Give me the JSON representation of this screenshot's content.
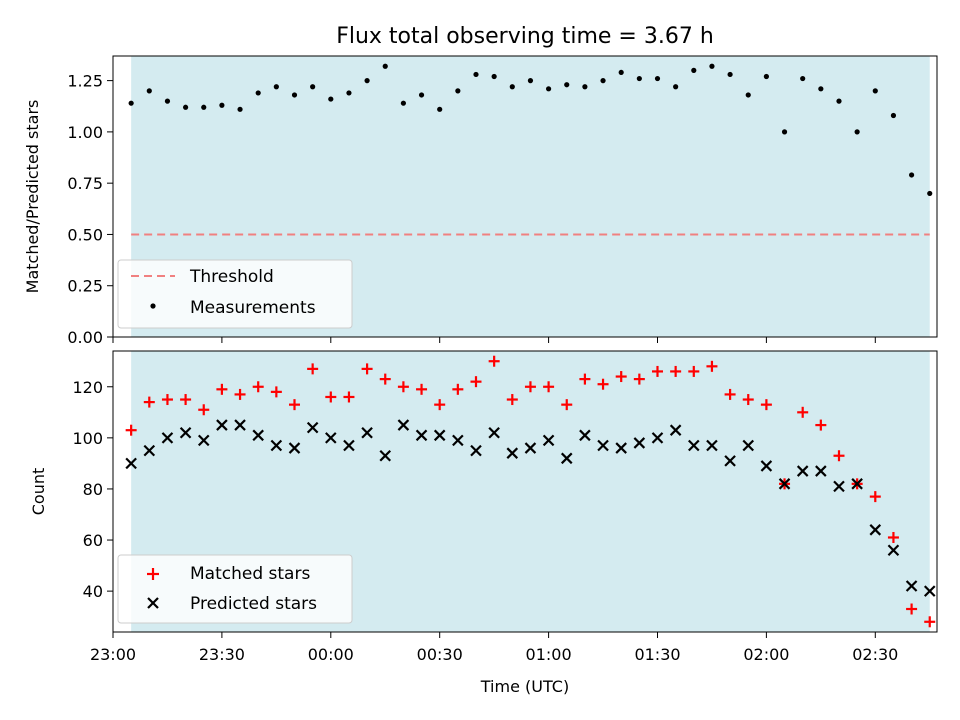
{
  "chart_data": [
    {
      "type": "scatter",
      "title": "Flux total observing time = 3.67 h",
      "xlabel": "",
      "ylabel": "Matched/Predicted stars",
      "ylim": [
        0.0,
        1.37
      ],
      "yticks": [
        0.0,
        0.25,
        0.5,
        0.75,
        1.0,
        1.25
      ],
      "ytick_labels": [
        "0.00",
        "0.25",
        "0.50",
        "0.75",
        "1.00",
        "1.25"
      ],
      "xlim": [
        "23:00",
        "02:47"
      ],
      "shaded_span": [
        "23:05",
        "02:45"
      ],
      "shade_color": "#d4ebf0",
      "grid": false,
      "legend_position": "lower-left",
      "threshold": 0.5,
      "x": [
        "23:05",
        "23:10",
        "23:15",
        "23:20",
        "23:25",
        "23:30",
        "23:35",
        "23:40",
        "23:45",
        "23:50",
        "23:55",
        "00:00",
        "00:05",
        "00:10",
        "00:15",
        "00:20",
        "00:25",
        "00:30",
        "00:35",
        "00:40",
        "00:45",
        "00:50",
        "00:55",
        "01:00",
        "01:05",
        "01:10",
        "01:15",
        "01:20",
        "01:25",
        "01:30",
        "01:35",
        "01:40",
        "01:45",
        "01:50",
        "01:55",
        "02:00",
        "02:05",
        "02:10",
        "02:15",
        "02:20",
        "02:25",
        "02:30",
        "02:35",
        "02:40",
        "02:45"
      ],
      "series": [
        {
          "name": "Threshold",
          "style": "dashed-line",
          "color": "#f08080",
          "values": [
            0.5,
            0.5
          ]
        },
        {
          "name": "Measurements",
          "style": "dot",
          "color": "#000000",
          "values": [
            1.14,
            1.2,
            1.15,
            1.12,
            1.12,
            1.13,
            1.11,
            1.19,
            1.22,
            1.18,
            1.22,
            1.16,
            1.19,
            1.25,
            1.32,
            1.14,
            1.18,
            1.11,
            1.2,
            1.28,
            1.27,
            1.22,
            1.25,
            1.21,
            1.23,
            1.22,
            1.25,
            1.29,
            1.26,
            1.26,
            1.22,
            1.3,
            1.32,
            1.28,
            1.18,
            1.27,
            1.0,
            1.26,
            1.21,
            1.15,
            1.0,
            1.2,
            1.08,
            0.79,
            0.7
          ]
        }
      ]
    },
    {
      "type": "scatter",
      "title": "",
      "xlabel": "Time (UTC)",
      "ylabel": "Count",
      "ylim": [
        24,
        134
      ],
      "yticks": [
        40,
        60,
        80,
        100,
        120
      ],
      "ytick_labels": [
        "40",
        "60",
        "80",
        "100",
        "120"
      ],
      "xticks": [
        "23:00",
        "23:30",
        "00:00",
        "00:30",
        "01:00",
        "01:30",
        "02:00",
        "02:30"
      ],
      "xtick_labels": [
        "23:00",
        "23:30",
        "00:00",
        "00:30",
        "01:00",
        "01:30",
        "02:00",
        "02:30"
      ],
      "xlim": [
        "23:00",
        "02:47"
      ],
      "shaded_span": [
        "23:05",
        "02:45"
      ],
      "grid": false,
      "legend_position": "lower-left",
      "x": [
        "23:05",
        "23:10",
        "23:15",
        "23:20",
        "23:25",
        "23:30",
        "23:35",
        "23:40",
        "23:45",
        "23:50",
        "23:55",
        "00:00",
        "00:05",
        "00:10",
        "00:15",
        "00:20",
        "00:25",
        "00:30",
        "00:35",
        "00:40",
        "00:45",
        "00:50",
        "00:55",
        "01:00",
        "01:05",
        "01:10",
        "01:15",
        "01:20",
        "01:25",
        "01:30",
        "01:35",
        "01:40",
        "01:45",
        "01:50",
        "01:55",
        "02:00",
        "02:05",
        "02:10",
        "02:15",
        "02:20",
        "02:25",
        "02:30",
        "02:35",
        "02:40",
        "02:45"
      ],
      "series": [
        {
          "name": "Matched stars",
          "marker": "plus",
          "color": "#ff0000",
          "values": [
            103,
            114,
            115,
            115,
            111,
            119,
            117,
            120,
            118,
            113,
            127,
            116,
            116,
            127,
            123,
            120,
            119,
            113,
            119,
            122,
            130,
            115,
            120,
            120,
            113,
            123,
            121,
            124,
            123,
            126,
            126,
            126,
            128,
            117,
            115,
            113,
            82,
            110,
            105,
            93,
            82,
            77,
            61,
            33,
            28
          ]
        },
        {
          "name": "Predicted stars",
          "marker": "x",
          "color": "#000000",
          "values": [
            90,
            95,
            100,
            102,
            99,
            105,
            105,
            101,
            97,
            96,
            104,
            100,
            97,
            102,
            93,
            105,
            101,
            101,
            99,
            95,
            102,
            94,
            96,
            99,
            92,
            101,
            97,
            96,
            98,
            100,
            103,
            97,
            97,
            91,
            97,
            89,
            82,
            87,
            87,
            81,
            82,
            64,
            56,
            42,
            40
          ]
        }
      ]
    }
  ]
}
